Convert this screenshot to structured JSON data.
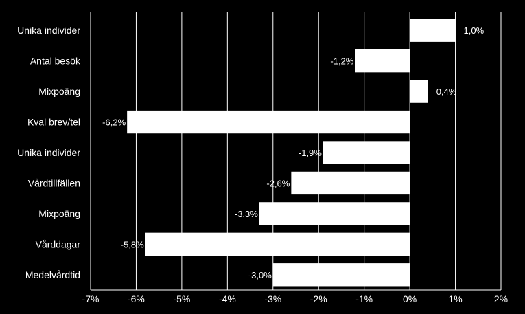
{
  "chart_data": {
    "type": "bar",
    "orientation": "horizontal",
    "categories": [
      "Unika individer",
      "Antal besök",
      "Mixpoäng",
      "Kval brev/tel",
      "Unika individer",
      "Vårdtillfällen",
      "Mixpoäng",
      "Vårddagar",
      "Medelvårdtid"
    ],
    "values": [
      1.0,
      -1.2,
      0.4,
      -6.2,
      -1.9,
      -2.6,
      -3.3,
      -5.8,
      -3.0
    ],
    "data_labels": [
      "1,0%",
      "-1,2%",
      "0,4%",
      "-6,2%",
      "-1,9%",
      "-2,6%",
      "-3,3%",
      "-5,8%",
      "-3,0%"
    ],
    "xlim": [
      -7,
      2
    ],
    "x_ticks": [
      -7,
      -6,
      -5,
      -4,
      -3,
      -2,
      -1,
      0,
      1,
      2
    ],
    "x_tick_labels": [
      "-7%",
      "-6%",
      "-5%",
      "-4%",
      "-3%",
      "-2%",
      "-1%",
      "0%",
      "1%",
      "2%"
    ],
    "grid": "vertical",
    "colors": {
      "background": "#000000",
      "bar": "#ffffff",
      "text": "#ffffff",
      "grid": "#ffffff"
    }
  }
}
